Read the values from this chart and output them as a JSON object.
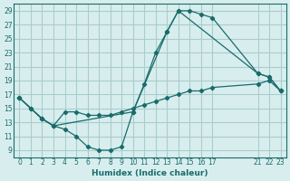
{
  "xlabel": "Humidex (Indice chaleur)",
  "ylabel": "",
  "bg_color": "#d8eeee",
  "grid_color": "#aacccc",
  "line_color": "#1a6b6b",
  "xlim": [
    -0.5,
    23.5
  ],
  "ylim": [
    8,
    30
  ],
  "xticks": [
    0,
    1,
    2,
    3,
    4,
    5,
    6,
    7,
    8,
    9,
    10,
    11,
    12,
    13,
    14,
    15,
    16,
    17,
    21,
    22,
    23
  ],
  "yticks": [
    9,
    11,
    13,
    15,
    17,
    19,
    21,
    23,
    25,
    27,
    29
  ],
  "series": [
    {
      "x": [
        0,
        1,
        2,
        3,
        4,
        5,
        6,
        7,
        8,
        9,
        10,
        11,
        12,
        13,
        14,
        15,
        16,
        17,
        21,
        22,
        23
      ],
      "y": [
        16.5,
        15,
        13.5,
        12.5,
        12,
        11,
        9.5,
        9,
        9,
        9.5,
        14.5,
        18.5,
        23,
        26,
        29,
        29,
        28.5,
        28,
        20,
        19.5,
        17.5
      ]
    },
    {
      "x": [
        0,
        1,
        2,
        3,
        4,
        5,
        6,
        7,
        8,
        9,
        10,
        11,
        12,
        13,
        14,
        15,
        16,
        17,
        21,
        22,
        23
      ],
      "y": [
        16.5,
        15,
        13.5,
        12.5,
        14.5,
        14.5,
        14,
        14,
        14,
        14.5,
        15,
        15.5,
        16,
        16.5,
        17,
        17.5,
        17.5,
        18,
        18.5,
        19,
        17.5
      ]
    },
    {
      "x": [
        0,
        2,
        3,
        10,
        13,
        14,
        21,
        22,
        23
      ],
      "y": [
        16.5,
        13.5,
        12.5,
        14.5,
        26,
        29,
        20,
        19.5,
        17.5
      ]
    }
  ]
}
